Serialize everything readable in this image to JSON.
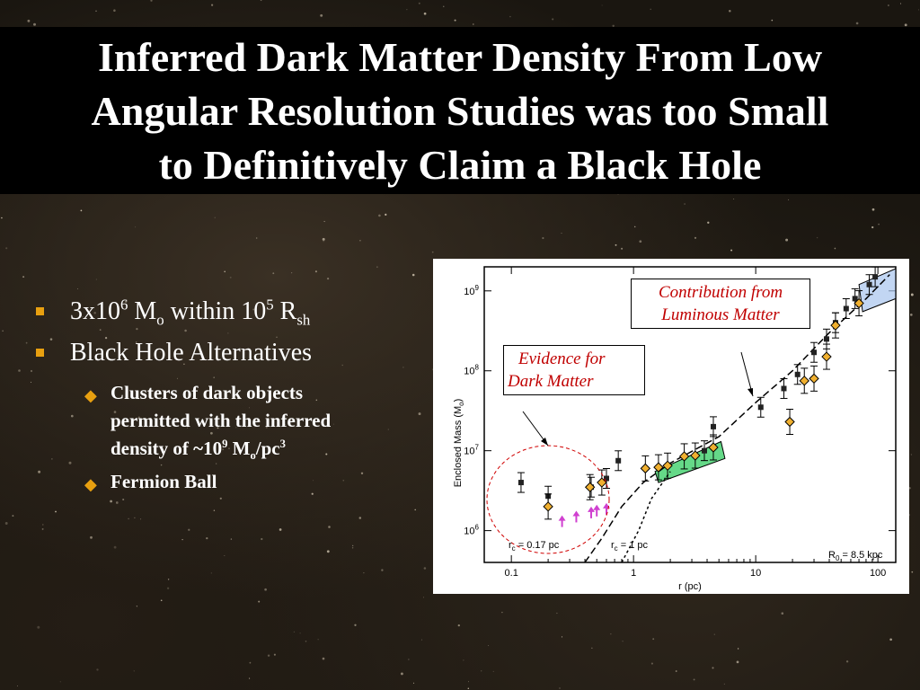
{
  "title": {
    "line1": "Inferred Dark Matter Density From Low",
    "line2": "Angular Resolution Studies was too Small",
    "line3": "to Definitively Claim a Black Hole"
  },
  "bullets": {
    "b1": {
      "pre": "3x10",
      "sup1": "6",
      "m": " M",
      "sub1": "o",
      "mid": " within 10",
      "sup2": "5",
      "r": " R",
      "sub2": "sh"
    },
    "b2": "Black Hole Alternatives",
    "s1": {
      "l1": "Clusters of dark objects",
      "l2": "permitted with the inferred",
      "pre": "density of ~10",
      "sup": "9",
      "m": " M",
      "sub": "o",
      "unit": "/pc",
      "sup2": "3"
    },
    "s2": "Fermion Ball"
  },
  "colors": {
    "accent": "#e8a010",
    "callout_text": "#c00000"
  },
  "chart_data": {
    "type": "scatter",
    "xlabel": "r (pc)",
    "ylabel": "Enclosed Mass (M",
    "ylabel_sub": "o",
    "ylabel_close": ")",
    "xscale": "log",
    "yscale": "log",
    "xlim": [
      0.06,
      140
    ],
    "ylim": [
      400000,
      2000000000
    ],
    "x_ticks": [
      {
        "v": 0.1,
        "label": "0.1"
      },
      {
        "v": 1,
        "label": "1"
      },
      {
        "v": 10,
        "label": "10"
      },
      {
        "v": 100,
        "label": "100"
      }
    ],
    "y_ticks": [
      {
        "v": 1000000,
        "label": "10",
        "exp": "6"
      },
      {
        "v": 10000000,
        "label": "10",
        "exp": "7"
      },
      {
        "v": 100000000,
        "label": "10",
        "exp": "8"
      },
      {
        "v": 1000000000,
        "label": "10",
        "exp": "9"
      }
    ],
    "annotations": {
      "r0": "R",
      "r0_sub": "0",
      "r0_val": " = 8.5 kpc",
      "rc1": "r",
      "rc1_sub": "c",
      "rc1_val": " = 0.17 pc",
      "rc2": "r",
      "rc2_sub": "c",
      "rc2_val": " = 1 pc"
    },
    "series": [
      {
        "values": [
          [
            0.12,
            4000000
          ],
          [
            0.2,
            2700000
          ],
          [
            0.45,
            3500000
          ],
          [
            0.6,
            4500000
          ],
          [
            0.75,
            7500000
          ],
          [
            3.8,
            10000000
          ],
          [
            4.5,
            20000000
          ],
          [
            11,
            35000000
          ],
          [
            17,
            60000000
          ],
          [
            22,
            90000000
          ],
          [
            30,
            170000000
          ],
          [
            38,
            250000000
          ],
          [
            45,
            400000000
          ],
          [
            55,
            600000000
          ],
          [
            65,
            800000000
          ],
          [
            85,
            1200000000
          ],
          [
            95,
            1500000000
          ]
        ]
      },
      {
        "values": [
          [
            0.2,
            2000000
          ],
          [
            0.44,
            3500000
          ],
          [
            0.55,
            4000000
          ],
          [
            1.25,
            6000000
          ],
          [
            1.6,
            6200000
          ],
          [
            1.9,
            6500000
          ],
          [
            2.6,
            8500000
          ],
          [
            3.2,
            8700000
          ],
          [
            4.5,
            11000000
          ],
          [
            19,
            23000000
          ],
          [
            25,
            75000000
          ],
          [
            30,
            80000000
          ],
          [
            38,
            150000000
          ],
          [
            45,
            370000000
          ],
          [
            70,
            700000000
          ]
        ]
      },
      {
        "values": [
          [
            0.26,
            1400000
          ],
          [
            0.34,
            1600000
          ],
          [
            0.45,
            1800000
          ],
          [
            0.5,
            1900000
          ],
          [
            0.6,
            2000000
          ]
        ]
      }
    ]
  },
  "callouts": {
    "luminous": {
      "l1": "Contribution from",
      "l2": "Luminous  Matter"
    },
    "dark": {
      "l1": "Evidence for",
      "l2": "Dark Matter"
    }
  }
}
